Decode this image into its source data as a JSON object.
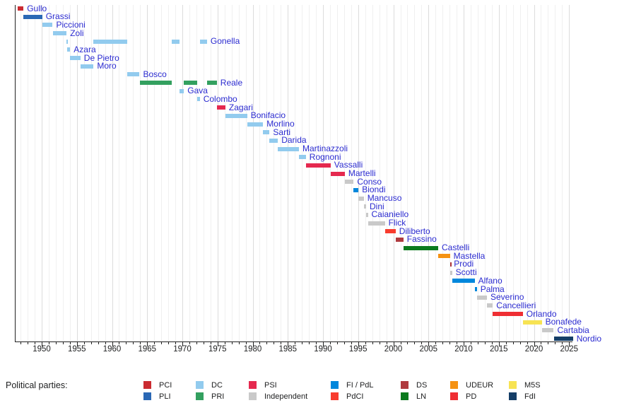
{
  "chart_data": {
    "type": "timeline",
    "title": "",
    "x_axis": {
      "range": [
        1946.1,
        2025.6
      ],
      "major_tick_labels": [
        "1950",
        "1955",
        "1960",
        "1965",
        "1970",
        "1975",
        "1980",
        "1985",
        "1990",
        "1995",
        "2000",
        "2005",
        "2010",
        "2015",
        "2020",
        "2025"
      ],
      "minor_tick_interval_years": 1,
      "gridlines": "yearly vertical"
    },
    "label_color": "#2B2BD0",
    "party_colors": {
      "PCI": "#CB2B31",
      "PLI": "#2A68B5",
      "DC": "#92CBEE",
      "PRI": "#33A05F",
      "PSI": "#E5294F",
      "Independent": "#C9C9C9",
      "FI_PdL": "#0087DC",
      "PdCI": "#F83C2E",
      "DS": "#AF3A3F",
      "LN": "#0B7A1E",
      "UDEUR": "#F59213",
      "PD": "#EF2E33",
      "M5S": "#F7E353",
      "FdI": "#153E67"
    },
    "ministers": [
      {
        "name": "Gullo",
        "party": "PCI",
        "terms": [
          [
            1946.53,
            1947.41
          ]
        ]
      },
      {
        "name": "Grassi",
        "party": "PLI",
        "terms": [
          [
            1947.41,
            1950.07
          ]
        ]
      },
      {
        "name": "Piccioni",
        "party": "DC",
        "terms": [
          [
            1950.07,
            1951.56
          ]
        ]
      },
      {
        "name": "Zoli",
        "party": "DC",
        "terms": [
          [
            1951.56,
            1953.54
          ]
        ]
      },
      {
        "name": "Gonella",
        "party": "DC",
        "terms": [
          [
            1953.54,
            1953.63
          ],
          [
            1957.38,
            1962.14
          ],
          [
            1968.48,
            1969.59
          ],
          [
            1972.48,
            1973.51
          ]
        ]
      },
      {
        "name": "Azara",
        "party": "DC",
        "terms": [
          [
            1953.63,
            1954.05
          ]
        ]
      },
      {
        "name": "De Pietro",
        "party": "DC",
        "terms": [
          [
            1954.05,
            1955.51
          ]
        ]
      },
      {
        "name": "Moro",
        "party": "DC",
        "terms": [
          [
            1955.51,
            1957.38
          ]
        ]
      },
      {
        "name": "Bosco",
        "party": "DC",
        "terms": [
          [
            1962.14,
            1963.92
          ]
        ]
      },
      {
        "name": "Reale",
        "party": "PRI",
        "terms": [
          [
            1963.92,
            1968.48
          ],
          [
            1970.23,
            1972.13
          ],
          [
            1973.51,
            1974.9
          ]
        ]
      },
      {
        "name": "Gava",
        "party": "DC",
        "terms": [
          [
            1969.59,
            1970.23
          ]
        ]
      },
      {
        "name": "Colombo",
        "party": "DC",
        "terms": [
          [
            1972.13,
            1972.48
          ]
        ]
      },
      {
        "name": "Zagari",
        "party": "PSI",
        "terms": [
          [
            1974.9,
            1976.12
          ]
        ]
      },
      {
        "name": "Bonifacio",
        "party": "DC",
        "terms": [
          [
            1976.12,
            1979.22
          ]
        ]
      },
      {
        "name": "Morlino",
        "party": "DC",
        "terms": [
          [
            1979.22,
            1981.49
          ]
        ]
      },
      {
        "name": "Sarti",
        "party": "DC",
        "terms": [
          [
            1981.49,
            1982.4
          ]
        ]
      },
      {
        "name": "Darida",
        "party": "DC",
        "terms": [
          [
            1982.4,
            1983.59
          ]
        ]
      },
      {
        "name": "Martinazzoli",
        "party": "DC",
        "terms": [
          [
            1983.59,
            1986.58
          ]
        ]
      },
      {
        "name": "Rognoni",
        "party": "DC",
        "terms": [
          [
            1986.58,
            1987.57
          ]
        ]
      },
      {
        "name": "Vassalli",
        "party": "PSI",
        "terms": [
          [
            1987.57,
            1991.09
          ]
        ]
      },
      {
        "name": "Martelli",
        "party": "PSI",
        "terms": [
          [
            1991.09,
            1993.11
          ]
        ]
      },
      {
        "name": "Conso",
        "party": "Independent",
        "terms": [
          [
            1993.12,
            1994.36
          ]
        ]
      },
      {
        "name": "Biondi",
        "party": "FI_PdL",
        "terms": [
          [
            1994.36,
            1995.05
          ]
        ]
      },
      {
        "name": "Mancuso",
        "party": "Independent",
        "terms": [
          [
            1995.05,
            1995.8
          ]
        ]
      },
      {
        "name": "Dini",
        "party": "Independent",
        "terms": [
          [
            1995.8,
            1996.13
          ]
        ]
      },
      {
        "name": "Caianiello",
        "party": "Independent",
        "terms": [
          [
            1996.13,
            1996.38
          ]
        ]
      },
      {
        "name": "Flick",
        "party": "Independent",
        "terms": [
          [
            1996.38,
            1998.8
          ]
        ]
      },
      {
        "name": "Diliberto",
        "party": "PdCI",
        "terms": [
          [
            1998.8,
            2000.32
          ]
        ]
      },
      {
        "name": "Fassino",
        "party": "DS",
        "terms": [
          [
            2000.32,
            2001.44
          ]
        ]
      },
      {
        "name": "Castelli",
        "party": "LN",
        "terms": [
          [
            2001.44,
            2006.38
          ]
        ]
      },
      {
        "name": "Mastella",
        "party": "UDEUR",
        "terms": [
          [
            2006.38,
            2008.05
          ]
        ]
      },
      {
        "name": "Prodi",
        "party": "PD",
        "color_override": "#AD3339",
        "terms": [
          [
            2008.05,
            2008.11
          ]
        ]
      },
      {
        "name": "Scotti",
        "party": "Independent",
        "terms": [
          [
            2008.11,
            2008.35
          ]
        ]
      },
      {
        "name": "Alfano",
        "party": "FI_PdL",
        "terms": [
          [
            2008.35,
            2011.57
          ]
        ]
      },
      {
        "name": "Palma",
        "party": "FI_PdL",
        "terms": [
          [
            2011.57,
            2011.88
          ]
        ]
      },
      {
        "name": "Severino",
        "party": "Independent",
        "terms": [
          [
            2011.88,
            2013.32
          ]
        ]
      },
      {
        "name": "Cancellieri",
        "party": "Independent",
        "terms": [
          [
            2013.32,
            2014.15
          ]
        ]
      },
      {
        "name": "Orlando",
        "party": "PD",
        "terms": [
          [
            2014.15,
            2018.42
          ]
        ]
      },
      {
        "name": "Bonafede",
        "party": "M5S",
        "terms": [
          [
            2018.42,
            2021.12
          ]
        ]
      },
      {
        "name": "Cartabia",
        "party": "Independent",
        "terms": [
          [
            2021.12,
            2022.81
          ]
        ]
      },
      {
        "name": "Nordio",
        "party": "FdI",
        "terms": [
          [
            2022.81,
            2025.55
          ]
        ]
      }
    ]
  },
  "legend": {
    "title": "Political parties:",
    "columns": [
      [
        {
          "label": "PCI",
          "party": "PCI"
        },
        {
          "label": "PLI",
          "party": "PLI"
        }
      ],
      [
        {
          "label": "DC",
          "party": "DC"
        },
        {
          "label": "PRI",
          "party": "PRI"
        }
      ],
      [
        {
          "label": "PSI",
          "party": "PSI"
        },
        {
          "label": "Independent",
          "party": "Independent"
        }
      ],
      [
        {
          "label": "FI / PdL",
          "party": "FI_PdL"
        },
        {
          "label": "PdCI",
          "party": "PdCI"
        }
      ],
      [
        {
          "label": "DS",
          "party": "DS"
        },
        {
          "label": "LN",
          "party": "LN"
        }
      ],
      [
        {
          "label": "UDEUR",
          "party": "UDEUR"
        },
        {
          "label": "PD",
          "party": "PD"
        }
      ],
      [
        {
          "label": "M5S",
          "party": "M5S"
        },
        {
          "label": "FdI",
          "party": "FdI"
        }
      ]
    ]
  }
}
